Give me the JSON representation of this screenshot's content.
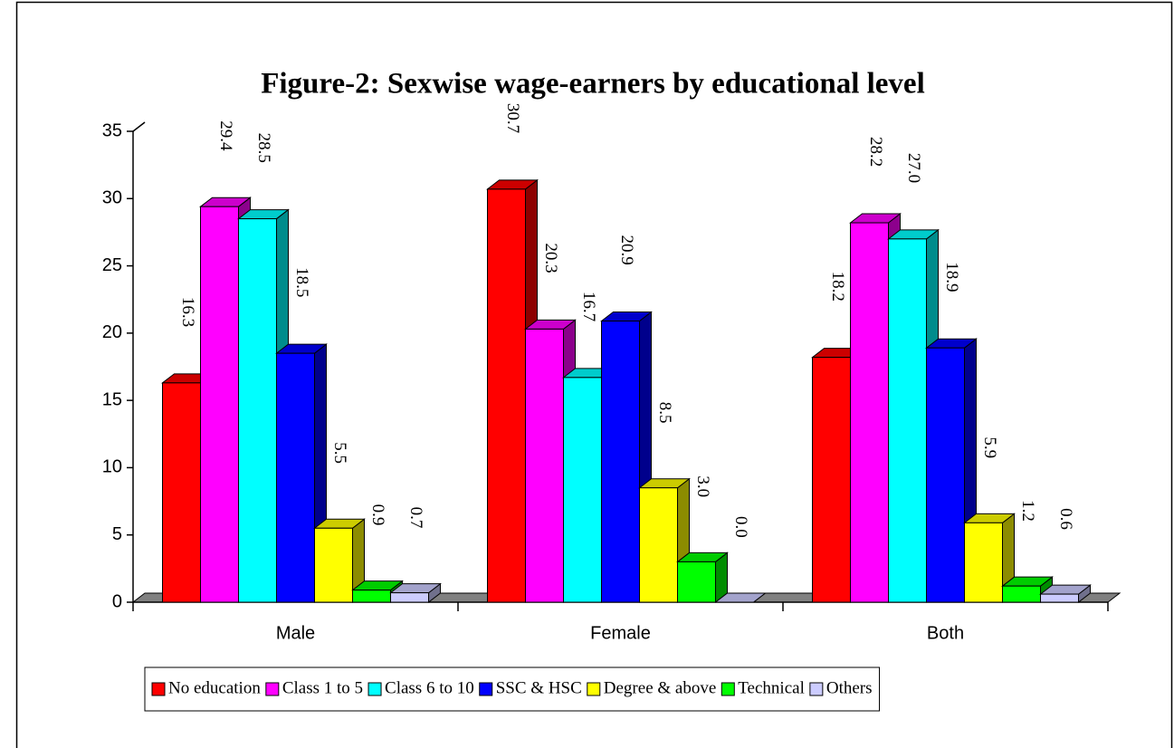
{
  "chart_data": {
    "type": "bar3d",
    "title": "Figure-2: Sexwise wage-earners by educational level",
    "categories": [
      "Male",
      "Female",
      "Both"
    ],
    "series": [
      {
        "name": "No education",
        "color": "#ff0000",
        "values": [
          16.3,
          30.7,
          18.2
        ],
        "value_labels": [
          "16.3",
          "30.7",
          "18.2"
        ]
      },
      {
        "name": "Class 1 to 5",
        "color": "#ff00ff",
        "values": [
          29.4,
          20.3,
          28.2
        ],
        "value_labels": [
          "29.4",
          "20.3",
          "28.2"
        ]
      },
      {
        "name": "Class 6 to 10",
        "color": "#00ffff",
        "values": [
          28.5,
          16.7,
          27.0
        ],
        "value_labels": [
          "28.5",
          "16.7",
          "27.0"
        ]
      },
      {
        "name": "SSC & HSC",
        "color": "#0000ff",
        "values": [
          18.5,
          20.9,
          18.9
        ],
        "value_labels": [
          "18.5",
          "20.9",
          "18.9"
        ]
      },
      {
        "name": "Degree & above",
        "color": "#ffff00",
        "values": [
          5.5,
          8.5,
          5.9
        ],
        "value_labels": [
          "5.5",
          "8.5",
          "5.9"
        ]
      },
      {
        "name": "Technical",
        "color": "#00ff00",
        "values": [
          0.9,
          3.0,
          1.2
        ],
        "value_labels": [
          "0.9",
          "3.0",
          "1.2"
        ]
      },
      {
        "name": "Others",
        "color": "#ccccff",
        "values": [
          0.7,
          0.0,
          0.6
        ],
        "value_labels": [
          "0.7",
          "0.0",
          "0.6"
        ]
      }
    ],
    "ylim": [
      0,
      35
    ],
    "yticks": [
      0,
      5,
      10,
      15,
      20,
      25,
      30,
      35
    ],
    "legend": "bottom"
  }
}
